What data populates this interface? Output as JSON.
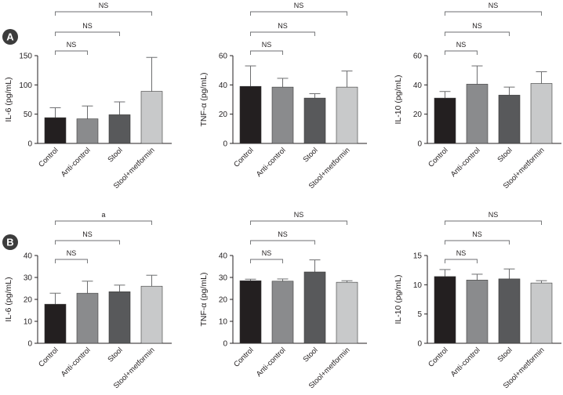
{
  "panels": [
    {
      "letter": "A"
    },
    {
      "letter": "B"
    }
  ],
  "colors": {
    "control": "#231f20",
    "anti_control": "#8a8b8d",
    "stool": "#58595b",
    "stool_metformin": "#c8c9ca",
    "axis": "#231f20",
    "bracket": "#6d6e70",
    "panel_badge": "#3c3c3c"
  },
  "chart_data": [
    {
      "type": "bar",
      "panel": "A",
      "ylabel": "IL-6 (pg/mL)",
      "ylim": [
        0,
        150
      ],
      "yticks": [
        0,
        50,
        100,
        150
      ],
      "categories": [
        "Control",
        "Anti-control",
        "Stool",
        "Stool+metformin"
      ],
      "values": [
        44,
        42,
        49,
        89
      ],
      "errors": [
        17,
        22,
        22,
        58
      ],
      "significance": [
        {
          "from": 0,
          "to": 1,
          "label": "NS"
        },
        {
          "from": 0,
          "to": 2,
          "label": "NS"
        },
        {
          "from": 0,
          "to": 3,
          "label": "NS"
        }
      ]
    },
    {
      "type": "bar",
      "panel": "A",
      "ylabel": "TNF-α (pg/mL)",
      "ylim": [
        0,
        60
      ],
      "yticks": [
        0,
        20,
        40,
        60
      ],
      "categories": [
        "Control",
        "Anti-control",
        "Stool",
        "Stool+metformin"
      ],
      "values": [
        39,
        38.5,
        31,
        38.5
      ],
      "errors": [
        14,
        6,
        3,
        11
      ],
      "significance": [
        {
          "from": 0,
          "to": 1,
          "label": "NS"
        },
        {
          "from": 0,
          "to": 2,
          "label": "NS"
        },
        {
          "from": 0,
          "to": 3,
          "label": "NS"
        }
      ]
    },
    {
      "type": "bar",
      "panel": "A",
      "ylabel": "IL-10 (pg/mL)",
      "ylim": [
        0,
        60
      ],
      "yticks": [
        0,
        20,
        40,
        60
      ],
      "categories": [
        "Control",
        "Anti-control",
        "Stool",
        "Stool+metformin"
      ],
      "values": [
        31,
        40.5,
        33,
        41
      ],
      "errors": [
        4.5,
        12.5,
        5.5,
        8
      ],
      "significance": [
        {
          "from": 0,
          "to": 1,
          "label": "NS"
        },
        {
          "from": 0,
          "to": 2,
          "label": "NS"
        },
        {
          "from": 0,
          "to": 3,
          "label": "NS"
        }
      ]
    },
    {
      "type": "bar",
      "panel": "B",
      "ylabel": "IL-6 (pg/mL)",
      "ylim": [
        0,
        40
      ],
      "yticks": [
        0,
        10,
        20,
        30,
        40
      ],
      "categories": [
        "Control",
        "Anti-control",
        "Stool",
        "Stool+metformin"
      ],
      "values": [
        17.8,
        22.8,
        23.5,
        26
      ],
      "errors": [
        5,
        5.5,
        3,
        5
      ],
      "significance": [
        {
          "from": 0,
          "to": 1,
          "label": "NS"
        },
        {
          "from": 0,
          "to": 2,
          "label": "NS"
        },
        {
          "from": 0,
          "to": 3,
          "label": "a"
        }
      ]
    },
    {
      "type": "bar",
      "panel": "B",
      "ylabel": "TNF-α (pg/mL)",
      "ylim": [
        0,
        40
      ],
      "yticks": [
        0,
        10,
        20,
        30,
        40
      ],
      "categories": [
        "Control",
        "Anti-control",
        "Stool",
        "Stool+metformin"
      ],
      "values": [
        28.5,
        28.3,
        32.5,
        27.8
      ],
      "errors": [
        0.7,
        1,
        5.5,
        0.7
      ],
      "significance": [
        {
          "from": 0,
          "to": 1,
          "label": "NS"
        },
        {
          "from": 0,
          "to": 2,
          "label": "NS"
        },
        {
          "from": 0,
          "to": 3,
          "label": "NS"
        }
      ]
    },
    {
      "type": "bar",
      "panel": "B",
      "ylabel": "IL-10 (pg/mL)",
      "ylim": [
        0,
        15
      ],
      "yticks": [
        0,
        5,
        10,
        15
      ],
      "categories": [
        "Control",
        "Anti-control",
        "Stool",
        "Stool+metformin"
      ],
      "values": [
        11.4,
        10.8,
        11,
        10.3
      ],
      "errors": [
        1.2,
        1,
        1.7,
        0.4
      ],
      "significance": [
        {
          "from": 0,
          "to": 1,
          "label": "NS"
        },
        {
          "from": 0,
          "to": 2,
          "label": "NS"
        },
        {
          "from": 0,
          "to": 3,
          "label": "NS"
        }
      ]
    }
  ]
}
